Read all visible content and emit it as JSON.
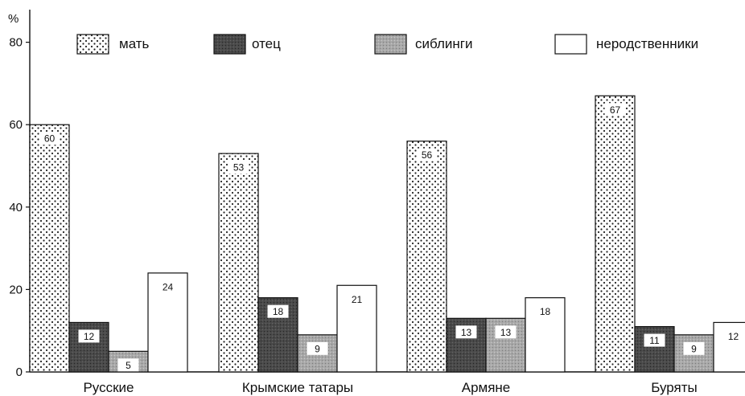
{
  "chart_data": {
    "type": "bar",
    "ylabel": "%",
    "ylim": [
      0,
      80
    ],
    "yticks": [
      "0",
      "20",
      "40",
      "60",
      "80"
    ],
    "legend_position": "top",
    "categories": [
      "Русские",
      "Крымские татары",
      "Армяне",
      "Буряты"
    ],
    "series": [
      {
        "name": "мать",
        "values": [
          60,
          53,
          56,
          67
        ],
        "labels": [
          "60",
          "53",
          "56",
          "67"
        ],
        "pattern": "dots"
      },
      {
        "name": "отец",
        "values": [
          12,
          18,
          13,
          11
        ],
        "labels": [
          "12",
          "18",
          "13",
          "11"
        ],
        "pattern": "dark"
      },
      {
        "name": "сиблинги",
        "values": [
          5,
          9,
          13,
          9
        ],
        "labels": [
          "5",
          "9",
          "13",
          "9"
        ],
        "pattern": "gray"
      },
      {
        "name": "неродственники",
        "values": [
          24,
          21,
          18,
          12
        ],
        "labels": [
          "24",
          "21",
          "18",
          "12"
        ],
        "pattern": "white"
      }
    ]
  }
}
